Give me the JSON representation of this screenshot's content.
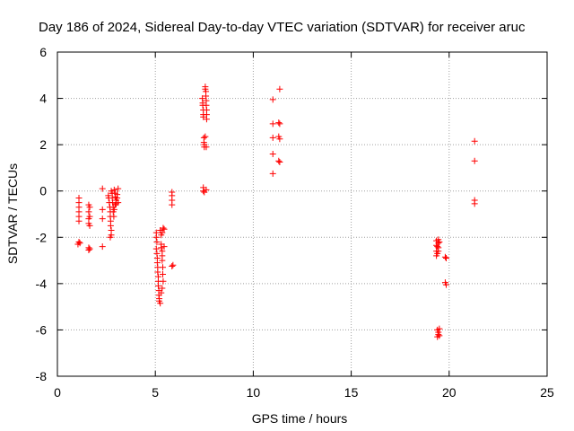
{
  "chart_data": {
    "type": "scatter",
    "title": "Day 186 of 2024, Sidereal Day-to-day VTEC variation (SDTVAR) for receiver aruc",
    "xlabel": "GPS time / hours",
    "ylabel": "SDTVAR / TECUs",
    "xlim": [
      0,
      25
    ],
    "ylim": [
      -8,
      6
    ],
    "xticks": [
      0,
      5,
      10,
      15,
      20,
      25
    ],
    "yticks": [
      -8,
      -6,
      -4,
      -2,
      0,
      2,
      4,
      6
    ],
    "grid": true,
    "marker": "+",
    "colors": {
      "series": "#ff0000",
      "axes": "#000000",
      "grid": "#a0a0a0"
    },
    "series": [
      {
        "name": "SDTVAR",
        "points": [
          [
            1.1,
            -0.3
          ],
          [
            1.1,
            -0.5
          ],
          [
            1.1,
            -0.7
          ],
          [
            1.1,
            -0.9
          ],
          [
            1.1,
            -1.1
          ],
          [
            1.1,
            -1.3
          ],
          [
            1.1,
            -2.2
          ],
          [
            1.15,
            -2.25
          ],
          [
            1.05,
            -2.3
          ],
          [
            1.6,
            -0.6
          ],
          [
            1.65,
            -0.7
          ],
          [
            1.6,
            -0.9
          ],
          [
            1.65,
            -1.1
          ],
          [
            1.6,
            -1.2
          ],
          [
            1.6,
            -1.4
          ],
          [
            1.65,
            -1.5
          ],
          [
            1.6,
            -2.45
          ],
          [
            1.65,
            -2.5
          ],
          [
            1.6,
            -2.55
          ],
          [
            2.3,
            0.1
          ],
          [
            2.3,
            -0.8
          ],
          [
            2.3,
            -1.2
          ],
          [
            2.3,
            -2.4
          ],
          [
            2.6,
            -0.2
          ],
          [
            2.62,
            -0.3
          ],
          [
            2.65,
            -0.5
          ],
          [
            2.68,
            -0.7
          ],
          [
            2.7,
            -0.9
          ],
          [
            2.7,
            -1.1
          ],
          [
            2.72,
            -1.3
          ],
          [
            2.72,
            -1.5
          ],
          [
            2.75,
            -1.7
          ],
          [
            2.75,
            -1.9
          ],
          [
            2.7,
            -2.0
          ],
          [
            2.75,
            0.0
          ],
          [
            2.8,
            -0.1
          ],
          [
            2.8,
            -0.3
          ],
          [
            2.82,
            -0.5
          ],
          [
            2.85,
            -0.7
          ],
          [
            2.85,
            -0.9
          ],
          [
            2.88,
            -1.1
          ],
          [
            2.9,
            0.05
          ],
          [
            2.95,
            -0.1
          ],
          [
            2.95,
            -0.25
          ],
          [
            3.0,
            -0.4
          ],
          [
            3.0,
            -0.55
          ],
          [
            3.05,
            -0.15
          ],
          [
            3.05,
            -0.3
          ],
          [
            3.1,
            0.1
          ],
          [
            3.1,
            -0.5
          ],
          [
            2.9,
            -0.8
          ],
          [
            2.95,
            -0.6
          ],
          [
            5.05,
            -1.8
          ],
          [
            5.05,
            -2.0
          ],
          [
            5.08,
            -2.2
          ],
          [
            5.05,
            -2.5
          ],
          [
            5.08,
            -2.7
          ],
          [
            5.1,
            -2.9
          ],
          [
            5.1,
            -3.1
          ],
          [
            5.12,
            -3.3
          ],
          [
            5.12,
            -3.5
          ],
          [
            5.15,
            -3.7
          ],
          [
            5.15,
            -3.9
          ],
          [
            5.15,
            -4.1
          ],
          [
            5.18,
            -4.3
          ],
          [
            5.18,
            -4.5
          ],
          [
            5.2,
            -4.65
          ],
          [
            5.2,
            -4.75
          ],
          [
            5.25,
            -4.85
          ],
          [
            5.25,
            -1.7
          ],
          [
            5.3,
            -1.9
          ],
          [
            5.3,
            -2.3
          ],
          [
            5.3,
            -2.45
          ],
          [
            5.35,
            -2.6
          ],
          [
            5.35,
            -2.8
          ],
          [
            5.35,
            -3.0
          ],
          [
            5.38,
            -3.3
          ],
          [
            5.38,
            -3.6
          ],
          [
            5.4,
            -3.9
          ],
          [
            5.35,
            -4.2
          ],
          [
            5.3,
            -4.4
          ],
          [
            5.4,
            -1.6
          ],
          [
            5.45,
            -1.65
          ],
          [
            5.35,
            -1.8
          ],
          [
            5.45,
            -2.4
          ],
          [
            5.85,
            -0.05
          ],
          [
            5.85,
            -0.2
          ],
          [
            5.85,
            -0.4
          ],
          [
            5.85,
            -0.6
          ],
          [
            5.9,
            -3.2
          ],
          [
            5.85,
            -3.25
          ],
          [
            7.4,
            4.0
          ],
          [
            7.42,
            3.8
          ],
          [
            7.42,
            3.7
          ],
          [
            7.45,
            3.5
          ],
          [
            7.45,
            3.3
          ],
          [
            7.45,
            3.2
          ],
          [
            7.48,
            2.3
          ],
          [
            7.48,
            2.1
          ],
          [
            7.5,
            2.0
          ],
          [
            7.5,
            1.9
          ],
          [
            7.45,
            0.15
          ],
          [
            7.45,
            0.0
          ],
          [
            7.5,
            -0.05
          ],
          [
            7.55,
            4.5
          ],
          [
            7.55,
            4.4
          ],
          [
            7.58,
            4.3
          ],
          [
            7.58,
            4.1
          ],
          [
            7.6,
            3.9
          ],
          [
            7.6,
            3.7
          ],
          [
            7.62,
            3.5
          ],
          [
            7.62,
            3.3
          ],
          [
            7.62,
            3.1
          ],
          [
            7.55,
            2.35
          ],
          [
            7.6,
            1.9
          ],
          [
            7.6,
            0.05
          ],
          [
            11.0,
            3.95
          ],
          [
            11.0,
            2.9
          ],
          [
            11.0,
            2.3
          ],
          [
            11.0,
            1.6
          ],
          [
            11.0,
            0.75
          ],
          [
            11.35,
            4.4
          ],
          [
            11.3,
            2.95
          ],
          [
            11.35,
            2.9
          ],
          [
            11.3,
            2.35
          ],
          [
            11.35,
            2.25
          ],
          [
            11.3,
            1.3
          ],
          [
            11.35,
            1.25
          ],
          [
            19.35,
            -2.15
          ],
          [
            19.35,
            -2.35
          ],
          [
            19.35,
            -2.6
          ],
          [
            19.35,
            -2.8
          ],
          [
            19.4,
            -2.4
          ],
          [
            19.4,
            -2.7
          ],
          [
            19.45,
            -2.1
          ],
          [
            19.45,
            -2.25
          ],
          [
            19.45,
            -2.45
          ],
          [
            19.45,
            -2.6
          ],
          [
            19.5,
            -2.2
          ],
          [
            19.4,
            -6.0
          ],
          [
            19.45,
            -6.1
          ],
          [
            19.45,
            -6.2
          ],
          [
            19.5,
            -6.25
          ],
          [
            19.4,
            -6.3
          ],
          [
            19.5,
            -5.95
          ],
          [
            19.8,
            -2.85
          ],
          [
            19.85,
            -2.9
          ],
          [
            19.8,
            -3.95
          ],
          [
            19.85,
            -4.05
          ],
          [
            21.3,
            2.15
          ],
          [
            21.3,
            1.3
          ],
          [
            21.3,
            -0.4
          ],
          [
            21.3,
            -0.55
          ]
        ]
      }
    ]
  }
}
